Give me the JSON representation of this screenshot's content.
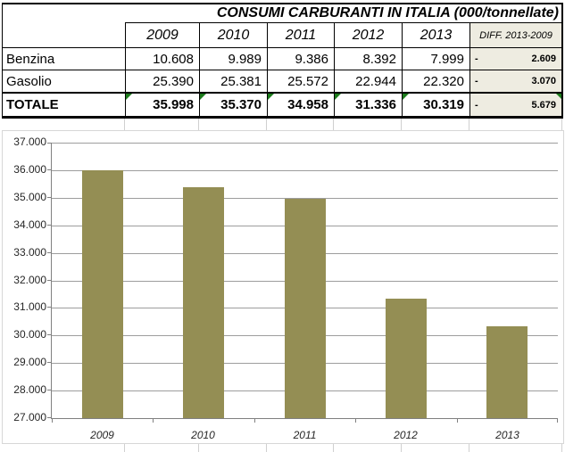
{
  "title": "CONSUMI CARBURANTI IN ITALIA (000/tonnellate)",
  "table": {
    "year_headers": [
      "2009",
      "2010",
      "2011",
      "2012",
      "2013"
    ],
    "diff_header": "DIFF. 2013-2009",
    "rows": [
      {
        "label": "Benzina",
        "values": [
          "10.608",
          "9.989",
          "9.386",
          "8.392",
          "7.999"
        ],
        "diff_sign": "-",
        "diff_value": "2.609"
      },
      {
        "label": "Gasolio",
        "values": [
          "25.390",
          "25.381",
          "25.572",
          "22.944",
          "22.320"
        ],
        "diff_sign": "-",
        "diff_value": "3.070"
      },
      {
        "label": "TOTALE",
        "values": [
          "35.998",
          "35.370",
          "34.958",
          "31.336",
          "30.319"
        ],
        "diff_sign": "-",
        "diff_value": "5.679"
      }
    ]
  },
  "chart_data": {
    "type": "bar",
    "categories": [
      "2009",
      "2010",
      "2011",
      "2012",
      "2013"
    ],
    "values": [
      35998,
      35370,
      34958,
      31336,
      30319
    ],
    "title": "",
    "xlabel": "",
    "ylabel": "",
    "ylim": [
      27000,
      37000
    ],
    "ytick_step": 1000,
    "ytick_labels": [
      "37.000",
      "36.000",
      "35.000",
      "34.000",
      "33.000",
      "32.000",
      "31.000",
      "30.000",
      "29.000",
      "28.000",
      "27.000"
    ],
    "grid": true,
    "legend": false,
    "bar_color": "#948E54"
  },
  "colors": {
    "bar": "#948E54",
    "diff_column_bg": "#EEECE1",
    "error_indicator_green": "#1C7C1C",
    "chart_gridline": "#9D9D9D",
    "chart_axis": "#808080",
    "sheet_gridline": "#D0D0D0",
    "chart_border": "#D7D7D7"
  }
}
